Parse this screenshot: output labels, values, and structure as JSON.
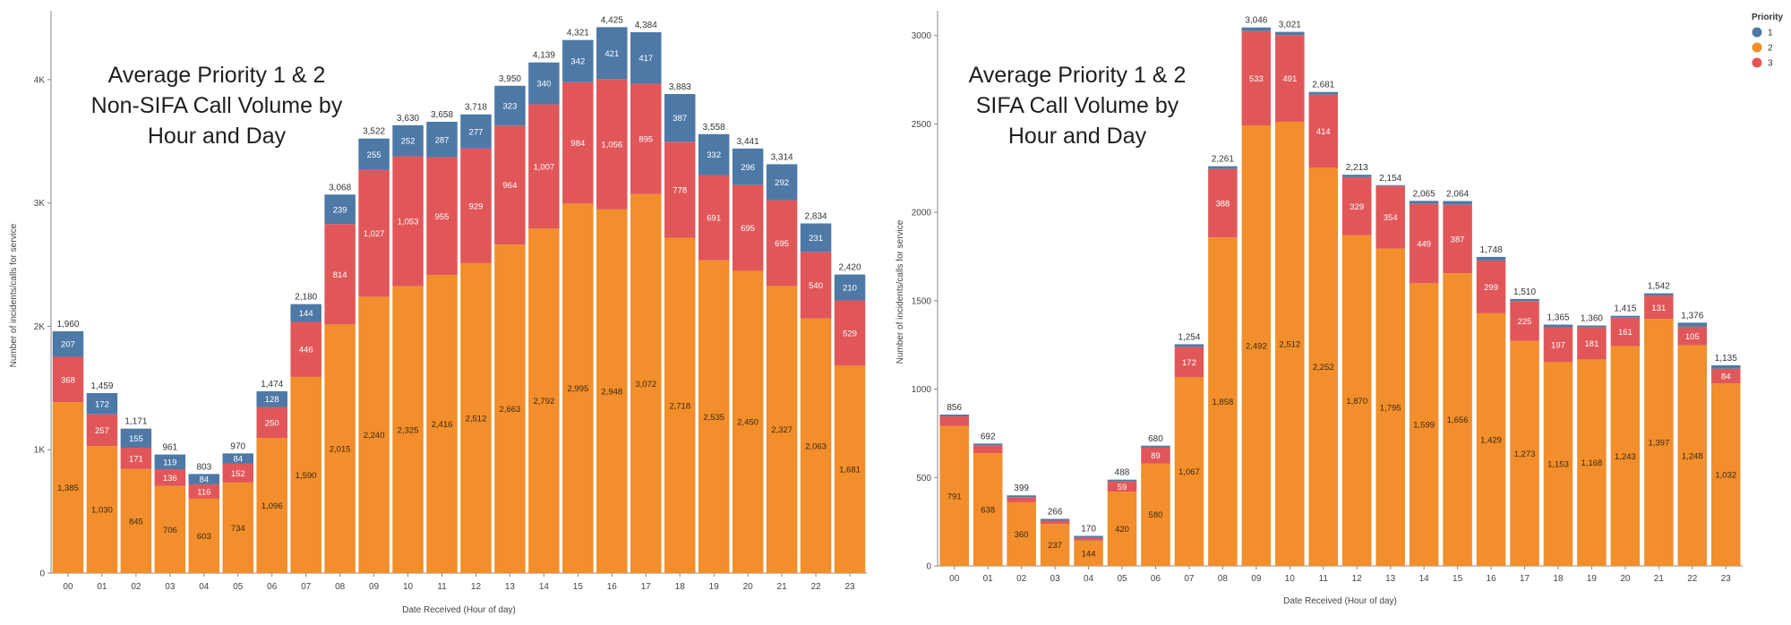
{
  "colors": {
    "p1": "#4e79a7",
    "p2": "#f28e2b",
    "p3": "#e15759",
    "axis": "#888888"
  },
  "legend": {
    "title": "Priority",
    "items": [
      "1",
      "2",
      "3"
    ]
  },
  "chart_data": [
    {
      "type": "bar",
      "stacked": true,
      "title_lines": [
        "Average Priority 1 & 2",
        "Non-SIFA Call Volume by",
        "Hour and Day"
      ],
      "xlabel": "Date Received (Hour of day)",
      "ylabel": "Number of incidents/calls for service",
      "ylim": [
        0,
        4500
      ],
      "yticks": [
        0,
        1000,
        2000,
        3000,
        4000
      ],
      "ytick_labels": [
        "0",
        "1K",
        "2K",
        "3K",
        "4K"
      ],
      "grid": false,
      "categories": [
        "00",
        "01",
        "02",
        "03",
        "04",
        "05",
        "06",
        "07",
        "08",
        "09",
        "10",
        "11",
        "12",
        "13",
        "14",
        "15",
        "16",
        "17",
        "18",
        "19",
        "20",
        "21",
        "22",
        "23"
      ],
      "series": [
        {
          "name": "2",
          "color_key": "p2",
          "values": [
            1385,
            1030,
            845,
            706,
            603,
            734,
            1096,
            1590,
            2015,
            2240,
            2325,
            2416,
            2512,
            2663,
            2792,
            2995,
            2948,
            3072,
            2718,
            2535,
            2450,
            2327,
            2063,
            1681
          ],
          "labels": [
            "1,385",
            "1,030",
            "845",
            "706",
            "603",
            "734",
            "1,096",
            "1,590",
            "2,015",
            "2,240",
            "2,325",
            "2,416",
            "2,512",
            "2,663",
            "2,792",
            "2,995",
            "2,948",
            "3,072",
            "2,718",
            "2,535",
            "2,450",
            "2,327",
            "2,063",
            "1,681"
          ]
        },
        {
          "name": "3",
          "color_key": "p3",
          "values": [
            368,
            257,
            171,
            136,
            116,
            152,
            250,
            446,
            814,
            1027,
            1053,
            955,
            929,
            964,
            1007,
            984,
            1056,
            895,
            778,
            691,
            695,
            695,
            540,
            529
          ],
          "labels": [
            "368",
            "257",
            "171",
            "136",
            "116",
            "152",
            "250",
            "446",
            "814",
            "1,027",
            "1,053",
            "955",
            "929",
            "964",
            "1,007",
            "984",
            "1,056",
            "895",
            "778",
            "691",
            "695",
            "695",
            "540",
            "529"
          ]
        },
        {
          "name": "1",
          "color_key": "p1",
          "values": [
            207,
            172,
            155,
            119,
            84,
            84,
            128,
            144,
            239,
            255,
            252,
            287,
            277,
            323,
            340,
            342,
            421,
            417,
            387,
            332,
            296,
            292,
            231,
            210
          ],
          "labels": [
            "207",
            "172",
            "155",
            "119",
            "84",
            "84",
            "128",
            "144",
            "239",
            "255",
            "252",
            "287",
            "277",
            "323",
            "340",
            "342",
            "421",
            "417",
            "387",
            "332",
            "296",
            "292",
            "231",
            "210"
          ]
        }
      ],
      "totals": [
        "1,960",
        "1,459",
        "1,171",
        "961",
        "803",
        "970",
        "1,474",
        "2,180",
        "3,068",
        "3,522",
        "3,630",
        "3,658",
        "3,718",
        "3,950",
        "4,139",
        "4,321",
        "4,425",
        "4,384",
        "3,883",
        "3,558",
        "3,441",
        "3,314",
        "2,834",
        "2,420"
      ]
    },
    {
      "type": "bar",
      "stacked": true,
      "title_lines": [
        "Average Priority 1 & 2",
        "SIFA Call Volume by",
        "Hour and Day"
      ],
      "xlabel": "Date Received (Hour of day)",
      "ylabel": "Number of incidents/calls for service",
      "ylim": [
        0,
        3100
      ],
      "yticks": [
        0,
        500,
        1000,
        1500,
        2000,
        2500,
        3000
      ],
      "ytick_labels": [
        "0",
        "500",
        "1000",
        "1500",
        "2000",
        "2500",
        "3000"
      ],
      "grid": false,
      "legend_position": "top-right",
      "categories": [
        "00",
        "01",
        "02",
        "03",
        "04",
        "05",
        "06",
        "07",
        "08",
        "09",
        "10",
        "11",
        "12",
        "13",
        "14",
        "15",
        "16",
        "17",
        "18",
        "19",
        "20",
        "21",
        "22",
        "23"
      ],
      "series": [
        {
          "name": "2",
          "color_key": "p2",
          "values": [
            791,
            638,
            360,
            237,
            144,
            420,
            580,
            1067,
            1858,
            2492,
            2512,
            2252,
            1870,
            1795,
            1599,
            1656,
            1429,
            1273,
            1153,
            1168,
            1243,
            1397,
            1248,
            1032
          ],
          "labels": [
            "791",
            "638",
            "360",
            "237",
            "144",
            "420",
            "580",
            "1,067",
            "1,858",
            "2,492",
            "2,512",
            "2,252",
            "1,870",
            "1,795",
            "1,599",
            "1,656",
            "1,429",
            "1,273",
            "1,153",
            "1,168",
            "1,243",
            "1,397",
            "1,248",
            "1,032"
          ]
        },
        {
          "name": "3",
          "color_key": "p3",
          "values": [
            55,
            44,
            29,
            19,
            14,
            59,
            89,
            172,
            388,
            533,
            491,
            414,
            329,
            354,
            449,
            387,
            299,
            225,
            197,
            181,
            161,
            131,
            105,
            84
          ],
          "labels": [
            "",
            "",
            "",
            "",
            "",
            "59",
            "89",
            "172",
            "388",
            "533",
            "491",
            "414",
            "329",
            "354",
            "449",
            "387",
            "299",
            "225",
            "197",
            "181",
            "161",
            "131",
            "105",
            "84"
          ]
        },
        {
          "name": "1",
          "color_key": "p1",
          "values": [
            10,
            10,
            10,
            10,
            12,
            9,
            11,
            15,
            15,
            21,
            18,
            15,
            14,
            5,
            17,
            21,
            20,
            12,
            15,
            11,
            11,
            14,
            23,
            19
          ],
          "labels": [
            "",
            "",
            "",
            "",
            "",
            "",
            "",
            "",
            "",
            "",
            "",
            "",
            "",
            "",
            "",
            "",
            "",
            "",
            "",
            "",
            "",
            "",
            "",
            ""
          ]
        }
      ],
      "totals": [
        "856",
        "692",
        "399",
        "266",
        "170",
        "488",
        "680",
        "1,254",
        "2,261",
        "3,046",
        "3,021",
        "2,681",
        "2,213",
        "2,154",
        "2,065",
        "2,064",
        "1,748",
        "1,510",
        "1,365",
        "1,360",
        "1,415",
        "1,542",
        "1,376",
        "1,135"
      ]
    }
  ]
}
